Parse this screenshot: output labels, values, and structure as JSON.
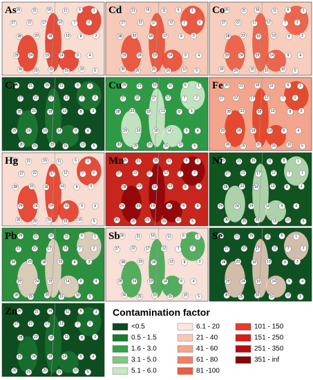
{
  "panels": [
    {
      "label": "As",
      "colors": [
        "#f8ddd3",
        "#e2321f"
      ]
    },
    {
      "label": "Cd",
      "colors": [
        "#f6c9b8",
        "#e8452d"
      ]
    },
    {
      "label": "Co",
      "colors": [
        "#f7cdbd",
        "#e9533a"
      ]
    },
    {
      "label": "Cr",
      "colors": [
        "#0e4f21",
        "#1e7a33"
      ]
    },
    {
      "label": "Cu",
      "colors": [
        "#2f9a45",
        "#d9efd4"
      ]
    },
    {
      "label": "Fe",
      "colors": [
        "#f2a58c",
        "#e2391f"
      ]
    },
    {
      "label": "Hg",
      "colors": [
        "#f8dcd2",
        "#e2321f"
      ]
    },
    {
      "label": "Mn",
      "colors": [
        "#c8251c",
        "#8a0508"
      ]
    },
    {
      "label": "Ni",
      "colors": [
        "#10541f",
        "#c9e8c3"
      ]
    },
    {
      "label": "Pb",
      "colors": [
        "#2b8f3e",
        "#f7d6cc"
      ]
    },
    {
      "label": "Sb",
      "colors": [
        "#f8e0d8",
        "#37a34a"
      ]
    },
    {
      "label": "Se",
      "colors": [
        "#0f5222",
        "#f5cfc2"
      ]
    },
    {
      "label": "Zn",
      "colors": [
        "#0d4d1f",
        "#1a7330"
      ]
    }
  ],
  "sites": [
    "1",
    "2",
    "3",
    "4",
    "5",
    "6",
    "7",
    "8",
    "9",
    "10",
    "11",
    "12",
    "13",
    "14",
    "15",
    "16",
    "17",
    "18",
    "19",
    "20",
    "21",
    "22",
    "23",
    "24",
    "25",
    "26",
    "27",
    "28",
    "29",
    "30"
  ],
  "legend": {
    "title": "Contamination factor",
    "classes": [
      {
        "label": "<0.5",
        "color": "#0b4a1f"
      },
      {
        "label": "0.5 - 1.5",
        "color": "#1b7a30"
      },
      {
        "label": "1.6 - 3.0",
        "color": "#37a049"
      },
      {
        "label": "3.1 - 5.0",
        "color": "#7fc981"
      },
      {
        "label": "5.1 - 6.0",
        "color": "#c6e7c1"
      },
      {
        "label": "6.1 - 20",
        "color": "#fde6de"
      },
      {
        "label": "21 - 40",
        "color": "#f9c8b6"
      },
      {
        "label": "41 - 60",
        "color": "#f5a58c"
      },
      {
        "label": "61 - 80",
        "color": "#f08064"
      },
      {
        "label": "81 -100",
        "color": "#ea5e42"
      },
      {
        "label": "101 - 150",
        "color": "#e43c27"
      },
      {
        "label": "151 - 250",
        "color": "#d3201a"
      },
      {
        "label": "251 - 350",
        "color": "#b50d12"
      },
      {
        "label": "351 - inf",
        "color": "#860508"
      }
    ]
  }
}
